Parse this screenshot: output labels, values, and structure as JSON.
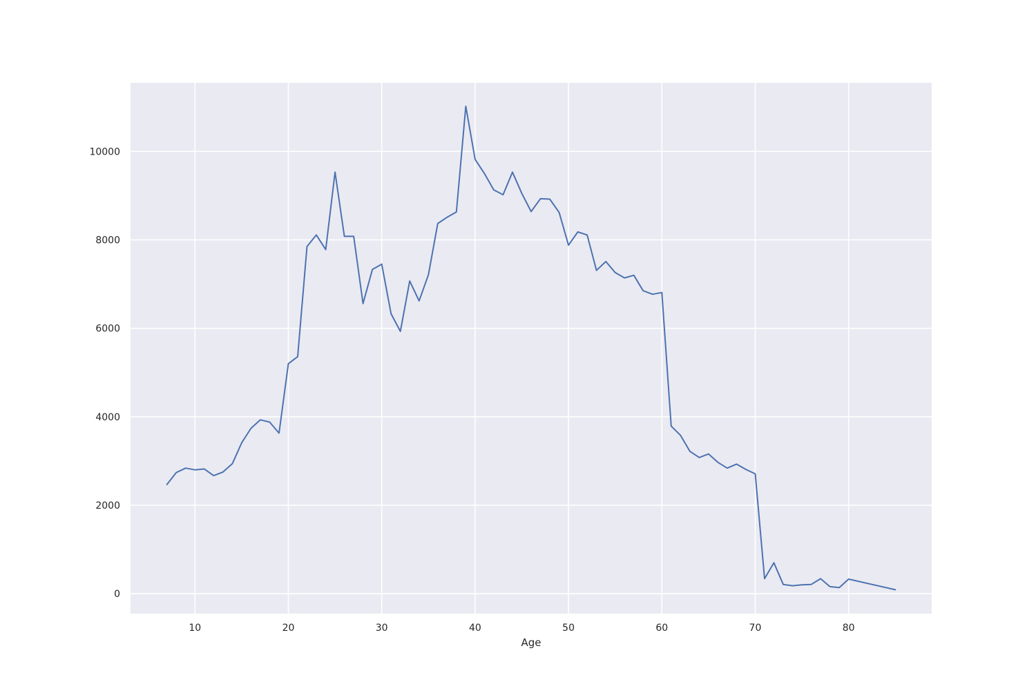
{
  "chart_data": {
    "type": "line",
    "title": "",
    "xlabel": "Age",
    "ylabel": "",
    "xlim": [
      3.1,
      88.9
    ],
    "ylim": [
      -450,
      11550
    ],
    "xticks": [
      10,
      20,
      30,
      40,
      50,
      60,
      70,
      80
    ],
    "yticks": [
      0,
      2000,
      4000,
      6000,
      8000,
      10000
    ],
    "grid": true,
    "legend": "none",
    "colors": {
      "background": "#eaeaf2",
      "grid": "#ffffff",
      "line": "#4c72b0"
    },
    "series": [
      {
        "x": [
          7,
          8,
          9,
          10,
          11,
          12,
          13,
          14,
          15,
          16,
          17,
          18,
          19,
          20,
          21,
          22,
          23,
          24,
          25,
          26,
          27,
          28,
          29,
          30,
          31,
          32,
          33,
          34,
          35,
          36,
          37,
          38,
          39,
          40,
          41,
          42,
          43,
          44,
          45,
          46,
          47,
          48,
          49,
          50,
          51,
          52,
          53,
          54,
          55,
          56,
          57,
          58,
          59,
          60,
          61,
          62,
          63,
          64,
          65,
          66,
          67,
          68,
          69,
          70,
          71,
          72,
          73,
          74,
          75,
          76,
          77,
          78,
          79,
          80,
          85
        ],
        "y": [
          2470,
          2740,
          2840,
          2800,
          2820,
          2670,
          2750,
          2940,
          3410,
          3740,
          3930,
          3880,
          3630,
          5200,
          5360,
          7850,
          8110,
          7780,
          9530,
          8080,
          8080,
          6560,
          7330,
          7450,
          6330,
          5930,
          7070,
          6620,
          7210,
          8370,
          8510,
          8630,
          11020,
          9820,
          9500,
          9130,
          9020,
          9530,
          9050,
          8640,
          8930,
          8920,
          8620,
          7880,
          8180,
          8110,
          7310,
          7510,
          7260,
          7140,
          7200,
          6850,
          6770,
          6810,
          3790,
          3580,
          3220,
          3080,
          3160,
          2970,
          2840,
          2930,
          2810,
          2710,
          340,
          700,
          210,
          180,
          200,
          210,
          340,
          160,
          140,
          330,
          90
        ]
      }
    ]
  }
}
